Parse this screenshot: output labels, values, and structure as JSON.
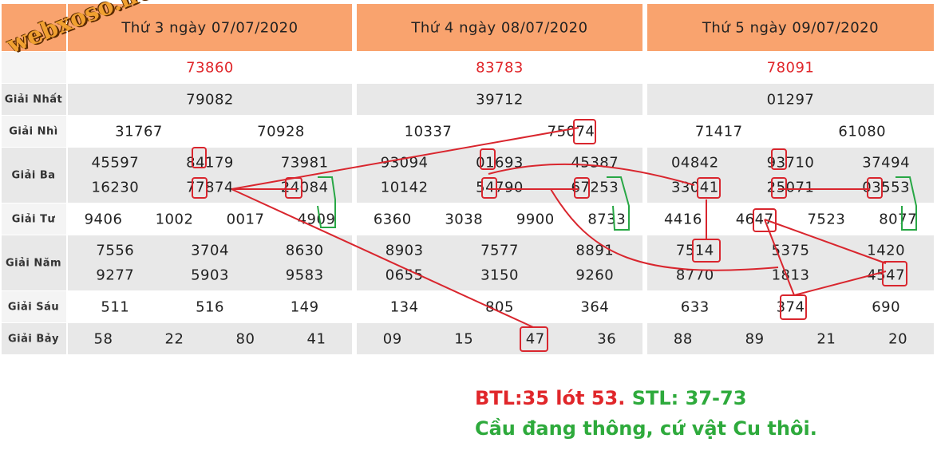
{
  "watermark": "webxoso.net",
  "prize_labels": [
    "Giải Nhất",
    "Giải Nhì",
    "Giải Ba",
    "Giải Tư",
    "Giải Năm",
    "Giải Sáu",
    "Giải Bảy"
  ],
  "days": [
    {
      "header": "Thứ 3 ngày 07/07/2020",
      "special": "73860",
      "prizes": [
        [
          "79082"
        ],
        [
          "31767",
          "70928"
        ],
        [
          "45597",
          "84179",
          "73981",
          "16230",
          "77874",
          "24084"
        ],
        [
          "9406",
          "1002",
          "0017",
          "4909"
        ],
        [
          "7556",
          "3704",
          "8630",
          "9277",
          "5903",
          "9583"
        ],
        [
          "511",
          "516",
          "149"
        ],
        [
          "58",
          "22",
          "80",
          "41"
        ]
      ]
    },
    {
      "header": "Thứ 4 ngày 08/07/2020",
      "special": "83783",
      "prizes": [
        [
          "39712"
        ],
        [
          "10337",
          "75074"
        ],
        [
          "93094",
          "01693",
          "45387",
          "10142",
          "54790",
          "67253"
        ],
        [
          "6360",
          "3038",
          "9900",
          "8733"
        ],
        [
          "8903",
          "7577",
          "8891",
          "0655",
          "3150",
          "9260"
        ],
        [
          "134",
          "805",
          "364"
        ],
        [
          "09",
          "15",
          "47",
          "36"
        ]
      ]
    },
    {
      "header": "Thứ 5 ngày 09/07/2020",
      "special": "78091",
      "prizes": [
        [
          "01297"
        ],
        [
          "71417",
          "61080"
        ],
        [
          "04842",
          "93710",
          "37494",
          "33041",
          "25071",
          "03553"
        ],
        [
          "4416",
          "4647",
          "7523",
          "8077"
        ],
        [
          "7514",
          "5375",
          "1420",
          "8770",
          "1813",
          "4547"
        ],
        [
          "633",
          "374",
          "690"
        ],
        [
          "88",
          "89",
          "21",
          "20"
        ]
      ]
    }
  ],
  "note": {
    "line1_red": "BTL:35 lót 53.",
    "line1_green": "STL: 37-73",
    "line2": "Cầu đang thông, cứ vật Cu thôi."
  }
}
